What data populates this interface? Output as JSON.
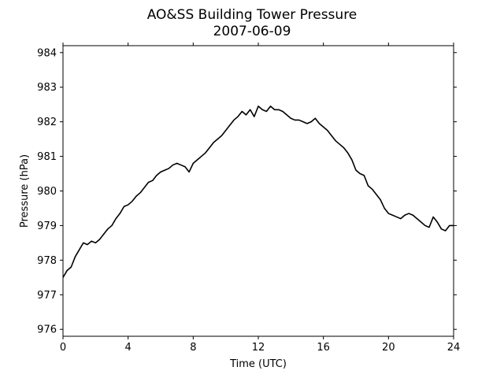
{
  "chart_data": {
    "type": "line",
    "title": "AO&SS Building Tower Pressure",
    "subtitle": "2007-06-09",
    "xlabel": "Time (UTC)",
    "ylabel": "Pressure (hPa)",
    "xlim": [
      0,
      24
    ],
    "ylim": [
      975.8,
      984.2
    ],
    "xticks": [
      0,
      4,
      8,
      12,
      16,
      20,
      24
    ],
    "yticks": [
      976,
      977,
      978,
      979,
      980,
      981,
      982,
      983,
      984
    ],
    "grid": false,
    "legend": "none",
    "line_color": "#000000",
    "series": [
      {
        "x": [
          0,
          0.25,
          0.5,
          0.75,
          1.0,
          1.25,
          1.5,
          1.75,
          2.0,
          2.25,
          2.5,
          2.75,
          3.0,
          3.25,
          3.5,
          3.75,
          4.0,
          4.25,
          4.5,
          4.75,
          5.0,
          5.25,
          5.5,
          5.75,
          6.0,
          6.25,
          6.5,
          6.75,
          7.0,
          7.25,
          7.5,
          7.75,
          8.0,
          8.25,
          8.5,
          8.75,
          9.0,
          9.25,
          9.5,
          9.75,
          10.0,
          10.25,
          10.5,
          10.75,
          11.0,
          11.25,
          11.5,
          11.75,
          12.0,
          12.25,
          12.5,
          12.75,
          13.0,
          13.25,
          13.5,
          13.75,
          14.0,
          14.25,
          14.5,
          14.75,
          15.0,
          15.25,
          15.5,
          15.75,
          16.0,
          16.25,
          16.5,
          16.75,
          17.0,
          17.25,
          17.5,
          17.75,
          18.0,
          18.25,
          18.5,
          18.75,
          19.0,
          19.25,
          19.5,
          19.75,
          20.0,
          20.25,
          20.5,
          20.75,
          21.0,
          21.25,
          21.5,
          21.75,
          22.0,
          22.25,
          22.5,
          22.75,
          23.0,
          23.25,
          23.5,
          23.75,
          24.0
        ],
        "y": [
          977.5,
          977.7,
          977.8,
          978.1,
          978.3,
          978.5,
          978.45,
          978.55,
          978.5,
          978.6,
          978.75,
          978.9,
          979.0,
          979.2,
          979.35,
          979.55,
          979.6,
          979.7,
          979.85,
          979.95,
          980.1,
          980.25,
          980.3,
          980.45,
          980.55,
          980.6,
          980.65,
          980.75,
          980.8,
          980.75,
          980.7,
          980.55,
          980.8,
          980.9,
          981.0,
          981.1,
          981.25,
          981.4,
          981.5,
          981.6,
          981.75,
          981.9,
          982.05,
          982.15,
          982.3,
          982.2,
          982.35,
          982.15,
          982.45,
          982.35,
          982.3,
          982.45,
          982.35,
          982.35,
          982.3,
          982.2,
          982.1,
          982.05,
          982.05,
          982.0,
          981.95,
          982.0,
          982.1,
          981.95,
          981.85,
          981.75,
          981.6,
          981.45,
          981.35,
          981.25,
          981.1,
          980.9,
          980.6,
          980.5,
          980.45,
          980.15,
          980.05,
          979.9,
          979.75,
          979.5,
          979.35,
          979.3,
          979.25,
          979.2,
          979.3,
          979.35,
          979.3,
          979.2,
          979.1,
          979.0,
          978.95,
          979.25,
          979.1,
          978.9,
          978.85,
          979.0,
          979.0
        ]
      }
    ]
  }
}
